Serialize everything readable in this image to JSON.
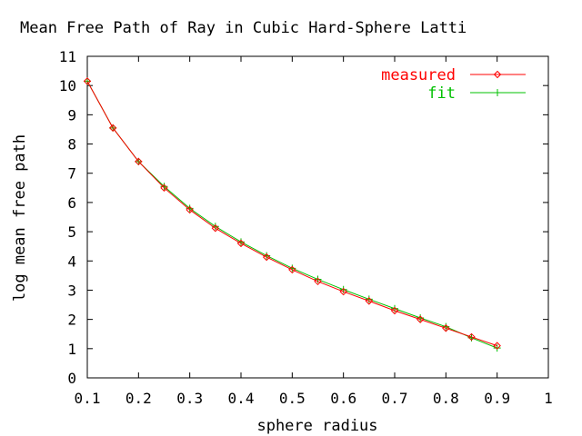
{
  "chart_data": {
    "type": "line",
    "title": "Mean Free Path of Ray in Cubic Hard-Sphere Latti",
    "xlabel": "sphere radius",
    "ylabel": "log mean free path",
    "xlim": [
      0.1,
      1
    ],
    "ylim": [
      0,
      11
    ],
    "x_ticks": [
      "0.1",
      "0.2",
      "0.3",
      "0.4",
      "0.5",
      "0.6",
      "0.7",
      "0.8",
      "0.9",
      "1"
    ],
    "y_ticks": [
      "0",
      "1",
      "2",
      "3",
      "4",
      "5",
      "6",
      "7",
      "8",
      "9",
      "10",
      "11"
    ],
    "grid": false,
    "legend_position": "top-right",
    "x": [
      0.1,
      0.15,
      0.2,
      0.25,
      0.3,
      0.35,
      0.4,
      0.45,
      0.5,
      0.55,
      0.6,
      0.65,
      0.7,
      0.75,
      0.8,
      0.85,
      0.9
    ],
    "series": [
      {
        "name": "measured",
        "color": "#ff0000",
        "marker": "diamond",
        "values": [
          10.15,
          8.55,
          7.4,
          6.5,
          5.75,
          5.12,
          4.6,
          4.13,
          3.7,
          3.3,
          2.95,
          2.63,
          2.3,
          2.0,
          1.7,
          1.4,
          1.1
        ]
      },
      {
        "name": "fit",
        "color": "#00c000",
        "marker": "plus",
        "values": [
          10.15,
          8.55,
          7.4,
          6.55,
          5.8,
          5.18,
          4.65,
          4.18,
          3.75,
          3.37,
          3.02,
          2.69,
          2.37,
          2.05,
          1.75,
          1.37,
          1.02
        ]
      }
    ]
  }
}
